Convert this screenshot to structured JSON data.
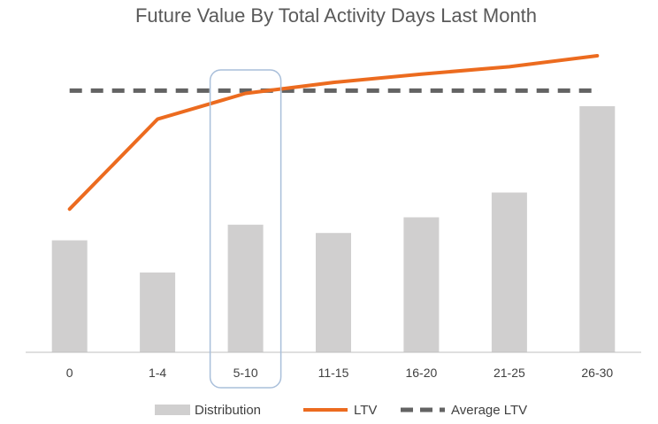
{
  "chart_data": {
    "type": "bar",
    "title": "Future Value By Total Activity Days Last Month",
    "categories": [
      "0",
      "1-4",
      "5-10",
      "11-15",
      "16-20",
      "21-25",
      "26-30"
    ],
    "series": [
      {
        "name": "Distribution",
        "kind": "bar",
        "color": "#d0cfcf",
        "values": [
          122,
          87,
          139,
          130,
          147,
          174,
          268
        ]
      },
      {
        "name": "LTV",
        "kind": "line",
        "color": "#ec6b1f",
        "values": [
          156,
          254,
          282,
          294,
          303,
          311,
          323
        ]
      },
      {
        "name": "Average LTV",
        "kind": "dashed-line",
        "color": "#636363",
        "values": [
          285,
          285,
          285,
          285,
          285,
          285,
          285
        ]
      }
    ],
    "highlighted_category": "5-10",
    "highlight_color": "#a9bfda",
    "xlabel": "",
    "ylabel": "",
    "ylim": [
      0,
      350
    ],
    "legend": "bottom",
    "grid": false
  }
}
